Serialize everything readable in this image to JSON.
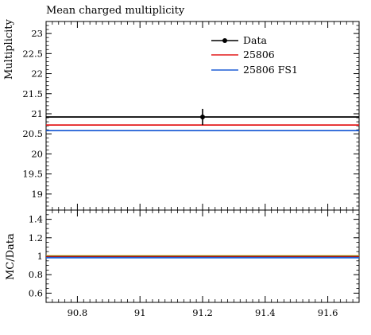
{
  "chart_data": [
    {
      "type": "line",
      "title": "Mean charged multiplicity",
      "xlabel": "",
      "ylabel": "Multiplicity",
      "xlim": [
        90.7,
        91.7
      ],
      "ylim": [
        18.6,
        23.3
      ],
      "yticks": [
        19,
        19.5,
        20,
        20.5,
        21,
        21.5,
        22,
        22.5,
        23
      ],
      "ytick_labels": [
        "19",
        "19.5",
        "20",
        "20.5",
        "21",
        "21.5",
        "22",
        "22.5",
        "23"
      ],
      "legend_position": "top-right",
      "series": [
        {
          "name": "Data",
          "color": "#000000",
          "style": "points-with-errors",
          "x": [
            91.2
          ],
          "y": [
            20.92
          ],
          "yerr": [
            0.2
          ]
        },
        {
          "name": "25806",
          "color": "#e41a1c",
          "style": "line",
          "y": 20.72
        },
        {
          "name": "25806 FS1",
          "color": "#1f5fd6",
          "style": "line",
          "y": 20.58
        }
      ]
    },
    {
      "type": "line",
      "title": "",
      "xlabel": "",
      "ylabel": "MC/Data",
      "xlim": [
        90.7,
        91.7
      ],
      "ylim": [
        0.5,
        1.5
      ],
      "xticks": [
        90.8,
        91,
        91.2,
        91.4,
        91.6
      ],
      "xtick_labels": [
        "90.8",
        "91",
        "91.2",
        "91.4",
        "91.6"
      ],
      "yticks": [
        0.6,
        0.8,
        1.0,
        1.2,
        1.4
      ],
      "ytick_labels": [
        "0.6",
        "0.8",
        "1",
        "1.2",
        "1.4"
      ],
      "reference_band": {
        "value": 1.0,
        "color": "#ffd24d"
      },
      "series": [
        {
          "name": "25806",
          "color": "#e41a1c",
          "style": "line",
          "y": 0.99
        },
        {
          "name": "25806 FS1",
          "color": "#1f5fd6",
          "style": "line",
          "y": 0.984
        }
      ]
    }
  ]
}
